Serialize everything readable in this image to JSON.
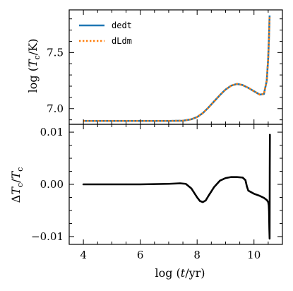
{
  "chart_data": [
    {
      "type": "line",
      "panel": "top",
      "ylabel": "log (T_c/K)",
      "xlim": [
        3.5,
        11.0
      ],
      "ylim": [
        6.86,
        7.88
      ],
      "yticks": [
        7.0,
        7.5
      ],
      "ytick_labels": [
        "7.0",
        "7.5"
      ],
      "legend_position": "top-left",
      "series": [
        {
          "name": "dedt",
          "color": "#1f77b4",
          "style": "solid",
          "x": [
            4.0,
            5.0,
            6.0,
            7.0,
            7.5,
            7.8,
            8.0,
            8.2,
            8.4,
            8.6,
            8.8,
            9.0,
            9.2,
            9.4,
            9.6,
            9.8,
            10.0,
            10.2,
            10.35,
            10.45,
            10.5,
            10.53,
            10.55
          ],
          "y": [
            6.89,
            6.89,
            6.89,
            6.89,
            6.892,
            6.905,
            6.925,
            6.96,
            7.01,
            7.065,
            7.12,
            7.17,
            7.205,
            7.22,
            7.21,
            7.185,
            7.155,
            7.125,
            7.13,
            7.25,
            7.45,
            7.65,
            7.83
          ]
        },
        {
          "name": "dLdm",
          "color": "#ff7f0e",
          "style": "dotted",
          "x": [
            4.0,
            5.0,
            6.0,
            7.0,
            7.5,
            7.8,
            8.0,
            8.2,
            8.4,
            8.6,
            8.8,
            9.0,
            9.2,
            9.4,
            9.6,
            9.8,
            10.0,
            10.2,
            10.35,
            10.45,
            10.5,
            10.53,
            10.55
          ],
          "y": [
            6.89,
            6.89,
            6.89,
            6.89,
            6.892,
            6.905,
            6.925,
            6.96,
            7.01,
            7.065,
            7.12,
            7.17,
            7.205,
            7.22,
            7.21,
            7.185,
            7.155,
            7.125,
            7.13,
            7.25,
            7.45,
            7.65,
            7.83
          ]
        }
      ]
    },
    {
      "type": "line",
      "panel": "bottom",
      "xlabel": "log (t/yr)",
      "ylabel": "ΔT_c/T_c",
      "xlim": [
        3.5,
        11.0
      ],
      "ylim": [
        -0.0115,
        0.0115
      ],
      "xticks": [
        4,
        6,
        8,
        10
      ],
      "xtick_labels": [
        "4",
        "6",
        "8",
        "10"
      ],
      "yticks": [
        -0.01,
        0.0,
        0.01
      ],
      "ytick_labels": [
        "−0.01",
        "0.00",
        "0.01"
      ],
      "series": [
        {
          "color": "#000000",
          "x": [
            4.0,
            5.0,
            6.0,
            7.0,
            7.4,
            7.6,
            7.8,
            8.0,
            8.1,
            8.2,
            8.3,
            8.4,
            8.6,
            8.8,
            9.0,
            9.2,
            9.4,
            9.6,
            9.7,
            9.75,
            9.8,
            10.0,
            10.2,
            10.35,
            10.45,
            10.5,
            10.52,
            10.53,
            10.54,
            10.55,
            10.555,
            10.56
          ],
          "y": [
            0.0,
            0.0,
            0.0,
            0.0001,
            0.0002,
            0.0001,
            -0.0008,
            -0.0025,
            -0.0032,
            -0.0034,
            -0.0031,
            -0.0022,
            -0.0005,
            0.0007,
            0.0012,
            0.0014,
            0.0014,
            0.0013,
            0.0008,
            -0.0004,
            -0.0012,
            -0.0018,
            -0.0022,
            -0.0026,
            -0.003,
            -0.0034,
            -0.004,
            -0.0052,
            -0.0085,
            -0.0104,
            0.003,
            0.0095
          ]
        }
      ]
    }
  ]
}
